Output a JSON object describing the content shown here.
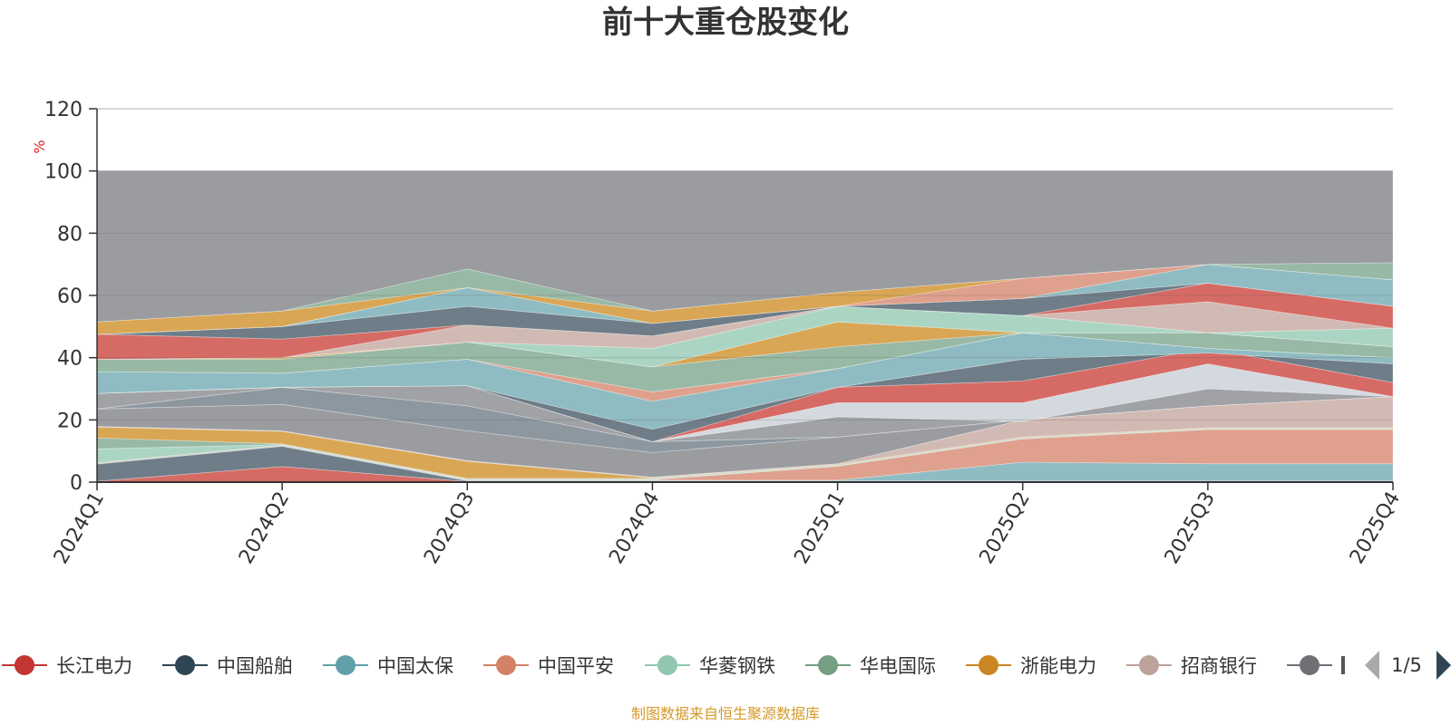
{
  "page_title": "前十大重仓股变化",
  "source_note": "制图数据来自恒生聚源数据库",
  "legend_pager": {
    "label": "1/5"
  },
  "chart_data": {
    "type": "area",
    "title": "前十大重仓股变化",
    "ylabel": "%",
    "xlabel": "",
    "stacked": true,
    "ylim": [
      0,
      120
    ],
    "yticks": [
      0,
      20,
      40,
      60,
      80,
      100,
      120
    ],
    "grid": true,
    "categories": [
      "2024Q1",
      "2024Q2",
      "2024Q3",
      "2024Q4",
      "2025Q1",
      "2025Q2",
      "2025Q3",
      "2025Q4"
    ],
    "legend_position": "bottom",
    "series": [
      {
        "name": "长江电力",
        "color": "#c23531",
        "values": [
          0.3,
          5.0,
          0.2,
          0.2,
          0.2,
          0.2,
          0.2,
          0.2
        ]
      },
      {
        "name": "中国船舶",
        "color": "#2f4554",
        "values": [
          5.5,
          6.5,
          0.2,
          0.2,
          0.2,
          0.2,
          0.2,
          0.2
        ]
      },
      {
        "name": "中国太保",
        "color": "#61a0a8",
        "values": [
          0.2,
          0.2,
          0.2,
          0.2,
          0.2,
          6.0,
          5.5,
          5.5
        ]
      },
      {
        "name": "中国平安",
        "color": "#d48265",
        "values": [
          0.2,
          0.2,
          0.2,
          0.2,
          4.5,
          7.5,
          11.0,
          11.0
        ]
      },
      {
        "name": "华菱钢铁",
        "color": "#91c7ae",
        "values": [
          4.5,
          0.2,
          0.2,
          0.2,
          0.2,
          0.2,
          0.2,
          0.2
        ]
      },
      {
        "name": "华电国际",
        "color": "#749f83",
        "values": [
          3.5,
          0.2,
          0.2,
          0.2,
          0.2,
          0.2,
          0.2,
          0.2
        ]
      },
      {
        "name": "浙能电力",
        "color": "#ca8622",
        "values": [
          3.5,
          4.0,
          5.5,
          0.2,
          0.2,
          0.2,
          0.2,
          0.2
        ]
      },
      {
        "name": "招商银行",
        "color": "#bda29a",
        "values": [
          0.2,
          0.2,
          0.2,
          0.2,
          0.2,
          5.5,
          7.0,
          10.0
        ]
      }
    ],
    "upper_boundaries": [
      [
        0.0,
        0.0,
        0.0,
        0.0,
        0.0,
        0.0,
        0.0,
        0.0
      ],
      [
        0.3,
        5.0,
        0.2,
        0.2,
        0.2,
        0.2,
        0.2,
        0.2
      ],
      [
        5.8,
        11.5,
        0.4,
        0.4,
        0.4,
        0.4,
        0.4,
        0.4
      ],
      [
        6.0,
        11.7,
        0.6,
        0.6,
        0.6,
        6.4,
        5.9,
        5.9
      ],
      [
        6.2,
        11.9,
        0.8,
        0.8,
        5.1,
        13.9,
        16.9,
        16.9
      ],
      [
        10.7,
        12.1,
        1.0,
        1.0,
        5.3,
        14.1,
        17.1,
        17.1
      ],
      [
        14.2,
        12.3,
        1.2,
        1.2,
        5.5,
        14.3,
        17.3,
        17.3
      ],
      [
        17.7,
        16.3,
        6.7,
        1.4,
        5.7,
        14.5,
        17.5,
        17.5
      ],
      [
        17.9,
        16.5,
        6.9,
        1.6,
        5.9,
        20.0,
        24.5,
        27.5
      ],
      [
        23.5,
        25.0,
        16.5,
        9.5,
        14.5,
        20.0,
        24.5,
        27.5
      ],
      [
        23.5,
        30.5,
        24.5,
        13.0,
        14.5,
        20.0,
        24.5,
        27.5
      ],
      [
        28.5,
        30.5,
        31.0,
        13.0,
        21.0,
        19.5,
        30.0,
        27.5
      ],
      [
        28.5,
        30.5,
        31.0,
        13.0,
        25.5,
        25.5,
        38.0,
        27.5
      ],
      [
        28.5,
        30.5,
        31.0,
        13.0,
        30.5,
        32.5,
        43.0,
        32.0
      ],
      [
        28.5,
        30.5,
        31.0,
        17.0,
        30.5,
        39.5,
        41.5,
        38.0
      ],
      [
        35.5,
        35.0,
        39.5,
        26.0,
        36.5,
        48.0,
        43.0,
        40.0
      ],
      [
        35.5,
        35.0,
        39.5,
        29.0,
        36.5,
        48.0,
        43.0,
        40.0
      ],
      [
        39.5,
        39.5,
        45.0,
        37.0,
        43.5,
        48.0,
        48.0,
        43.5
      ],
      [
        39.5,
        40.0,
        45.0,
        37.0,
        51.5,
        48.0,
        48.0,
        43.5
      ],
      [
        39.5,
        40.0,
        45.0,
        43.0,
        56.5,
        53.5,
        48.0,
        49.5
      ],
      [
        39.5,
        40.0,
        50.5,
        47.0,
        56.5,
        53.5,
        58.0,
        49.5
      ],
      [
        47.5,
        46.0,
        50.5,
        47.0,
        56.5,
        53.5,
        64.0,
        56.5
      ],
      [
        47.5,
        50.0,
        56.5,
        51.0,
        56.5,
        59.0,
        64.0,
        56.5
      ],
      [
        47.5,
        50.0,
        62.5,
        51.0,
        56.5,
        59.0,
        70.0,
        65.0
      ],
      [
        47.5,
        50.0,
        62.5,
        51.0,
        56.5,
        65.5,
        70.0,
        65.0
      ],
      [
        51.5,
        55.0,
        62.5,
        55.0,
        61.0,
        65.5,
        70.0,
        65.0
      ],
      [
        51.5,
        55.0,
        68.5,
        55.0,
        61.0,
        65.5,
        70.0,
        70.5
      ],
      [
        100.0,
        100.0,
        100.0,
        100.0,
        100.0,
        100.0,
        100.0,
        100.0
      ]
    ],
    "band_colors": [
      "#d66a64",
      "#6e7d88",
      "#8fbcc2",
      "#dfa08d",
      "#abd5c3",
      "#98b9a5",
      "#d9a655",
      "#d2bab4",
      "#9a9ca0",
      "#8c979f",
      "#a0a2a5",
      "#d4d9df",
      "#d66a64",
      "#6e7d88",
      "#8fbcc2",
      "#dfa08d",
      "#98b9a5",
      "#d9a655",
      "#abd5c3",
      "#d2bab4",
      "#d66a64",
      "#6e7d88",
      "#8fbcc2",
      "#dfa08d",
      "#d9a655",
      "#98b9a5",
      "#9a9ca0",
      "#859297"
    ]
  }
}
